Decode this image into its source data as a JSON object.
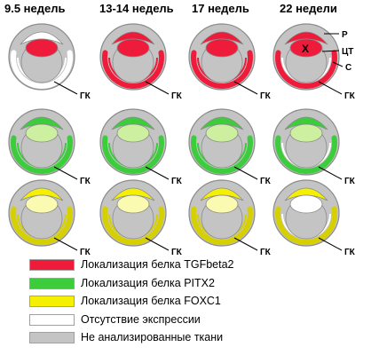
{
  "columns": [
    "9.5 недель",
    "13-14 недель",
    "17 недель",
    "22 недели"
  ],
  "rows": [
    {
      "protein": "TGFbeta2",
      "color": "#ee1c3a",
      "stages": [
        {
          "outer": "#ffffff",
          "ciliary": "#ffffff",
          "lens": "#ee1c3a",
          "ring": "#ffffff"
        },
        {
          "outer": "#ee1c3a",
          "ciliary": "#ee1c3a",
          "lens": "#ee1c3a",
          "ring": "#ee1c3a"
        },
        {
          "outer": "#ee1c3a",
          "ciliary": "#ee1c3a",
          "lens": "#ee1c3a",
          "ring": "#ee1c3a"
        },
        {
          "outer": "#ee1c3a",
          "ciliary": "#ee1c3a",
          "lens": "#ee1c3a",
          "ring": "#ffffff"
        }
      ]
    },
    {
      "protein": "PITX2",
      "color": "#3ccc3c",
      "stages": [
        {
          "outer": "#3ccc3c",
          "ciliary": "#3ccc3c",
          "lens": "#ccf0a0",
          "ring": "#3ccc3c"
        },
        {
          "outer": "#3ccc3c",
          "ciliary": "#3ccc3c",
          "lens": "#ccf0a0",
          "ring": "#3ccc3c"
        },
        {
          "outer": "#3ccc3c",
          "ciliary": "#3ccc3c",
          "lens": "#ccf0a0",
          "ring": "#3ccc3c"
        },
        {
          "outer": "#3ccc3c",
          "ciliary": "#3ccc3c",
          "lens": "#ccf0a0",
          "ring": "#ffffff"
        }
      ]
    },
    {
      "protein": "FOXC1",
      "color": "#f5f000",
      "stages": [
        {
          "outer": "#d6d000",
          "ciliary": "#f5f000",
          "lens": "#fafab0",
          "ring": "#d6d000"
        },
        {
          "outer": "#d6d000",
          "ciliary": "#f5f000",
          "lens": "#fafab0",
          "ring": "#d6d000"
        },
        {
          "outer": "#d6d000",
          "ciliary": "#f5f000",
          "lens": "#fafab0",
          "ring": "#d6d000"
        },
        {
          "outer": "#d6d000",
          "ciliary": "#f5f000",
          "lens": "#ffffff",
          "ring": "#ffffff"
        }
      ]
    }
  ],
  "colors": {
    "tissue": "#c4c4c4",
    "outline": "#8a8a8a",
    "no_expression": "#ffffff"
  },
  "gk_label": "ГК",
  "structure_labels": {
    "r": "Р",
    "ct": "ЦТ",
    "c": "С",
    "x": "Х"
  },
  "legend": [
    {
      "label": "Локализация белка TGFbeta2",
      "color": "#ee1c3a"
    },
    {
      "label": "Локализация белка PITX2",
      "color": "#3ccc3c"
    },
    {
      "label": "Локализация белка FOXC1",
      "color": "#f5f000"
    },
    {
      "label": "Отсутствие экспрессии",
      "color": "#ffffff"
    },
    {
      "label": "Не анализированные ткани",
      "color": "#c4c4c4"
    }
  ]
}
